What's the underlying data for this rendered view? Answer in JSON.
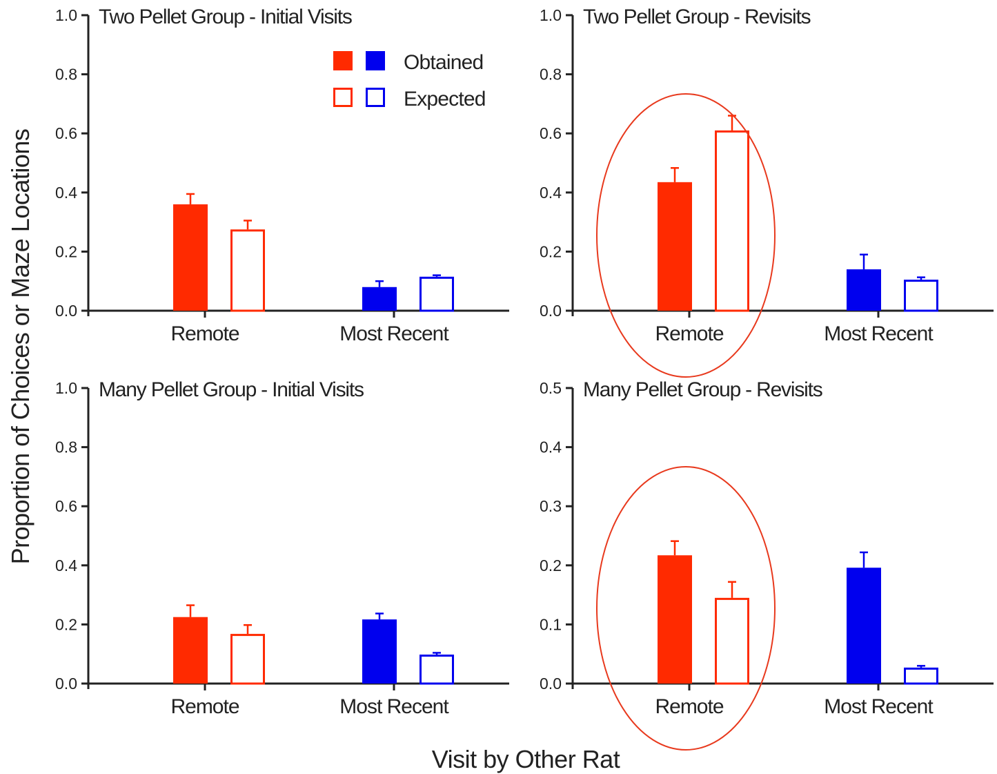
{
  "colors": {
    "remote": "#ff2a00",
    "most_recent": "#0000ee",
    "axis": "#222222",
    "highlight": "#e8391d"
  },
  "figure": {
    "ylabel": "Proportion of Choices or Maze Locations",
    "xlabel": "Visit by Other Rat",
    "legend": {
      "obtained_label": "Obtained",
      "expected_label": "Expected",
      "placement": "top-right of first panel"
    }
  },
  "chart_data": [
    {
      "type": "bar",
      "title": "Two Pellet Group - Initial  Visits",
      "categories": [
        "Remote",
        "Most Recent"
      ],
      "series": [
        {
          "name": "Obtained",
          "values": [
            0.36,
            0.08
          ],
          "errors": [
            0.035,
            0.02
          ]
        },
        {
          "name": "Expected",
          "values": [
            0.275,
            0.115
          ],
          "errors": [
            0.03,
            0.005
          ]
        }
      ],
      "ylim": [
        0,
        1.0
      ],
      "yticks": [
        "0.0",
        "0.2",
        "0.4",
        "0.6",
        "0.8",
        "1.0"
      ],
      "highlight_remote": false
    },
    {
      "type": "bar",
      "title": "Two Pellet Group - Revisits",
      "categories": [
        "Remote",
        "Most Recent"
      ],
      "series": [
        {
          "name": "Obtained",
          "values": [
            0.435,
            0.14
          ],
          "errors": [
            0.048,
            0.05
          ]
        },
        {
          "name": "Expected",
          "values": [
            0.61,
            0.105
          ],
          "errors": [
            0.05,
            0.008
          ]
        }
      ],
      "ylim": [
        0,
        1.0
      ],
      "yticks": [
        "0.0",
        "0.2",
        "0.4",
        "0.6",
        "0.8",
        "1.0"
      ],
      "highlight_remote": true
    },
    {
      "type": "bar",
      "title": "Many Pellet Group - Initial  Visits",
      "categories": [
        "Remote",
        "Most Recent"
      ],
      "series": [
        {
          "name": "Obtained",
          "values": [
            0.225,
            0.217
          ],
          "errors": [
            0.04,
            0.02
          ]
        },
        {
          "name": "Expected",
          "values": [
            0.168,
            0.098
          ],
          "errors": [
            0.03,
            0.006
          ]
        }
      ],
      "ylim": [
        0,
        1.0
      ],
      "yticks": [
        "0.0",
        "0.2",
        "0.4",
        "0.6",
        "0.8",
        "1.0"
      ],
      "highlight_remote": false
    },
    {
      "type": "bar",
      "title": "Many Pellet Group - Revisits",
      "categories": [
        "Remote",
        "Most Recent"
      ],
      "series": [
        {
          "name": "Obtained",
          "values": [
            0.217,
            0.196
          ],
          "errors": [
            0.024,
            0.026
          ]
        },
        {
          "name": "Expected",
          "values": [
            0.145,
            0.027
          ],
          "errors": [
            0.027,
            0.003
          ]
        }
      ],
      "ylim": [
        0,
        0.5
      ],
      "yticks": [
        "0.0",
        "0.1",
        "0.2",
        "0.3",
        "0.4",
        "0.5"
      ],
      "highlight_remote": true
    }
  ]
}
